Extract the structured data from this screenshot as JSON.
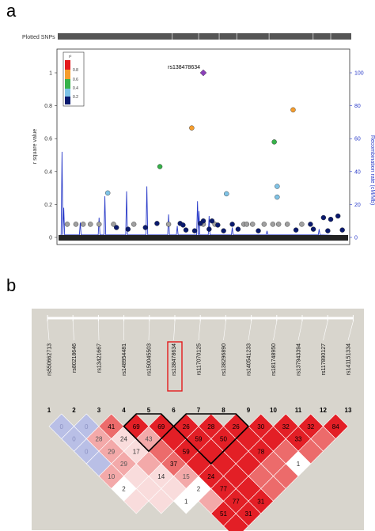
{
  "panel_labels": {
    "a": "a",
    "b": "b"
  },
  "colors": {
    "r2_high": "#e41a1c",
    "r2_08": "#f59d2d",
    "r2_06": "#37b24a",
    "r2_04": "#7fc3e6",
    "r2_02": "#0a1a6e",
    "lead": "#8a3fb8",
    "recomb": "#2b3cc9",
    "ld_bg": "#d8d5cd"
  },
  "chart_data": [
    {
      "type": "scatter",
      "strip_label": "Plotted SNPs",
      "ylabel": "r square value",
      "y2label": "Recombination rate (cM/Mb)",
      "ylim": [
        0,
        1.0
      ],
      "y2lim": [
        0,
        100
      ],
      "yticks": [
        "0",
        "0.2",
        "0.4",
        "0.6",
        "0.8",
        "1"
      ],
      "y2ticks": [
        "0",
        "20",
        "40",
        "60",
        "80",
        "100"
      ],
      "legend": {
        "title": "r²",
        "labels": [
          "0.8",
          "0.6",
          "0.4",
          "0.2"
        ],
        "position": "top-left"
      },
      "lead_snp": {
        "label": "rs138478634",
        "x": 0.5,
        "y": 1.0
      },
      "points": [
        {
          "x": 0.46,
          "y": 0.665,
          "cat": "r2_08"
        },
        {
          "x": 0.81,
          "y": 0.775,
          "cat": "r2_08"
        },
        {
          "x": 0.35,
          "y": 0.43,
          "cat": "r2_06"
        },
        {
          "x": 0.745,
          "y": 0.58,
          "cat": "r2_06"
        },
        {
          "x": 0.17,
          "y": 0.27,
          "cat": "r2_04"
        },
        {
          "x": 0.58,
          "y": 0.265,
          "cat": "r2_04"
        },
        {
          "x": 0.755,
          "y": 0.31,
          "cat": "r2_04"
        },
        {
          "x": 0.755,
          "y": 0.245,
          "cat": "r2_04"
        },
        {
          "x": 0.03,
          "y": 0.08,
          "cat": "grey"
        },
        {
          "x": 0.06,
          "y": 0.08,
          "cat": "grey"
        },
        {
          "x": 0.085,
          "y": 0.08,
          "cat": "grey"
        },
        {
          "x": 0.11,
          "y": 0.08,
          "cat": "grey"
        },
        {
          "x": 0.14,
          "y": 0.08,
          "cat": "grey"
        },
        {
          "x": 0.19,
          "y": 0.08,
          "cat": "grey"
        },
        {
          "x": 0.26,
          "y": 0.08,
          "cat": "grey"
        },
        {
          "x": 0.38,
          "y": 0.08,
          "cat": "grey"
        },
        {
          "x": 0.5,
          "y": 0.08,
          "cat": "grey"
        },
        {
          "x": 0.54,
          "y": 0.08,
          "cat": "grey"
        },
        {
          "x": 0.64,
          "y": 0.08,
          "cat": "grey"
        },
        {
          "x": 0.65,
          "y": 0.08,
          "cat": "grey"
        },
        {
          "x": 0.67,
          "y": 0.08,
          "cat": "grey"
        },
        {
          "x": 0.71,
          "y": 0.08,
          "cat": "grey"
        },
        {
          "x": 0.74,
          "y": 0.08,
          "cat": "grey"
        },
        {
          "x": 0.76,
          "y": 0.08,
          "cat": "grey"
        },
        {
          "x": 0.79,
          "y": 0.08,
          "cat": "grey"
        },
        {
          "x": 0.84,
          "y": 0.08,
          "cat": "grey"
        },
        {
          "x": 0.34,
          "y": 0.085,
          "cat": "r2_02"
        },
        {
          "x": 0.42,
          "y": 0.085,
          "cat": "r2_02"
        },
        {
          "x": 0.43,
          "y": 0.075,
          "cat": "r2_02"
        },
        {
          "x": 0.49,
          "y": 0.085,
          "cat": "r2_02"
        },
        {
          "x": 0.5,
          "y": 0.1,
          "cat": "r2_02"
        },
        {
          "x": 0.53,
          "y": 0.1,
          "cat": "r2_02"
        },
        {
          "x": 0.55,
          "y": 0.075,
          "cat": "r2_02"
        },
        {
          "x": 0.6,
          "y": 0.08,
          "cat": "r2_02"
        },
        {
          "x": 0.87,
          "y": 0.08,
          "cat": "r2_02"
        },
        {
          "x": 0.915,
          "y": 0.12,
          "cat": "r2_02"
        },
        {
          "x": 0.94,
          "y": 0.11,
          "cat": "r2_02"
        },
        {
          "x": 0.965,
          "y": 0.13,
          "cat": "r2_02"
        },
        {
          "x": 0.2,
          "y": 0.06,
          "cat": "r2_02"
        },
        {
          "x": 0.24,
          "y": 0.05,
          "cat": "r2_02"
        },
        {
          "x": 0.3,
          "y": 0.06,
          "cat": "r2_02"
        },
        {
          "x": 0.44,
          "y": 0.045,
          "cat": "r2_02"
        },
        {
          "x": 0.47,
          "y": 0.04,
          "cat": "r2_02"
        },
        {
          "x": 0.52,
          "y": 0.05,
          "cat": "r2_02"
        },
        {
          "x": 0.57,
          "y": 0.04,
          "cat": "r2_02"
        },
        {
          "x": 0.62,
          "y": 0.05,
          "cat": "r2_02"
        },
        {
          "x": 0.69,
          "y": 0.04,
          "cat": "r2_02"
        },
        {
          "x": 0.82,
          "y": 0.045,
          "cat": "r2_02"
        },
        {
          "x": 0.88,
          "y": 0.05,
          "cat": "r2_02"
        },
        {
          "x": 0.93,
          "y": 0.04,
          "cat": "r2_02"
        },
        {
          "x": 0.98,
          "y": 0.045,
          "cat": "r2_02"
        }
      ],
      "recomb_peaks": [
        {
          "x": 0.012,
          "y": 52
        },
        {
          "x": 0.018,
          "y": 18
        },
        {
          "x": 0.075,
          "y": 9
        },
        {
          "x": 0.14,
          "y": 12
        },
        {
          "x": 0.16,
          "y": 25
        },
        {
          "x": 0.235,
          "y": 28
        },
        {
          "x": 0.305,
          "y": 31
        },
        {
          "x": 0.38,
          "y": 14
        },
        {
          "x": 0.41,
          "y": 7
        },
        {
          "x": 0.48,
          "y": 22
        },
        {
          "x": 0.485,
          "y": 16
        },
        {
          "x": 0.52,
          "y": 13
        },
        {
          "x": 0.6,
          "y": 6
        },
        {
          "x": 0.72,
          "y": 4
        },
        {
          "x": 0.9,
          "y": 5
        }
      ]
    },
    {
      "type": "heatmap",
      "snps": [
        "rs550662713",
        "rs80218646",
        "rs13421667",
        "rs148954481",
        "rs150045503",
        "rs138478634",
        "rs117070125",
        "rs138296890",
        "rs140541233",
        "rs181748950",
        "rs137943394",
        "rs117890127",
        "rs141151334"
      ],
      "numbers": [
        "1",
        "2",
        "3",
        "4",
        "5",
        "6",
        "7",
        "8",
        "9",
        "10",
        "11",
        "12",
        "13"
      ],
      "highlight_index": 5,
      "cells": [
        {
          "i": 1,
          "j": 2,
          "v": "0",
          "c": "blue"
        },
        {
          "i": 2,
          "j": 3,
          "v": "0",
          "c": "blue"
        },
        {
          "i": 3,
          "j": 4,
          "v": "41",
          "c": "r3"
        },
        {
          "i": 4,
          "j": 5,
          "v": "69",
          "c": "r4"
        },
        {
          "i": 5,
          "j": 6,
          "v": "69",
          "c": "r4"
        },
        {
          "i": 6,
          "j": 7,
          "v": "26",
          "c": "r4"
        },
        {
          "i": 7,
          "j": 8,
          "v": "28",
          "c": "r4"
        },
        {
          "i": 8,
          "j": 9,
          "v": "26",
          "c": "r4"
        },
        {
          "i": 9,
          "j": 10,
          "v": "30",
          "c": "r4"
        },
        {
          "i": 10,
          "j": 11,
          "v": "32",
          "c": "r4"
        },
        {
          "i": 11,
          "j": 12,
          "v": "32",
          "c": "r4"
        },
        {
          "i": 12,
          "j": 13,
          "v": "84",
          "c": "r4"
        },
        {
          "i": 1,
          "j": 3,
          "v": "0",
          "c": "blue"
        },
        {
          "i": 2,
          "j": 4,
          "v": "28",
          "c": "r2"
        },
        {
          "i": 3,
          "j": 5,
          "v": "24",
          "c": "r1"
        },
        {
          "i": 4,
          "j": 6,
          "v": "43",
          "c": "r2"
        },
        {
          "i": 5,
          "j": 7,
          "v": "",
          "c": "r4"
        },
        {
          "i": 6,
          "j": 8,
          "v": "59",
          "c": "r4"
        },
        {
          "i": 7,
          "j": 9,
          "v": "50",
          "c": "r4"
        },
        {
          "i": 8,
          "j": 10,
          "v": "",
          "c": "r4"
        },
        {
          "i": 9,
          "j": 11,
          "v": "",
          "c": "r4"
        },
        {
          "i": 10,
          "j": 12,
          "v": "33",
          "c": "r4"
        },
        {
          "i": 11,
          "j": 13,
          "v": "",
          "c": "r3"
        },
        {
          "i": 1,
          "j": 4,
          "v": "0",
          "c": "blue"
        },
        {
          "i": 2,
          "j": 5,
          "v": "29",
          "c": "r2"
        },
        {
          "i": 3,
          "j": 6,
          "v": "17",
          "c": "r1"
        },
        {
          "i": 4,
          "j": 7,
          "v": "",
          "c": "r3"
        },
        {
          "i": 5,
          "j": 8,
          "v": "59",
          "c": "r4"
        },
        {
          "i": 6,
          "j": 9,
          "v": "",
          "c": "r4"
        },
        {
          "i": 7,
          "j": 10,
          "v": "",
          "c": "r4"
        },
        {
          "i": 8,
          "j": 11,
          "v": "78",
          "c": "r4"
        },
        {
          "i": 9,
          "j": 12,
          "v": "",
          "c": "r3"
        },
        {
          "i": 10,
          "j": 13,
          "v": "",
          "c": "r3"
        },
        {
          "i": 1,
          "j": 5,
          "v": "",
          "c": "blue"
        },
        {
          "i": 2,
          "j": 6,
          "v": "29",
          "c": "r2"
        },
        {
          "i": 3,
          "j": 7,
          "v": "",
          "c": "r2"
        },
        {
          "i": 4,
          "j": 8,
          "v": "37",
          "c": "r3"
        },
        {
          "i": 5,
          "j": 9,
          "v": "",
          "c": "r4"
        },
        {
          "i": 6,
          "j": 10,
          "v": "",
          "c": "r4"
        },
        {
          "i": 7,
          "j": 11,
          "v": "",
          "c": "r4"
        },
        {
          "i": 8,
          "j": 12,
          "v": "",
          "c": "r3"
        },
        {
          "i": 9,
          "j": 13,
          "v": "1",
          "c": "white"
        },
        {
          "i": 1,
          "j": 6,
          "v": "10",
          "c": "r2"
        },
        {
          "i": 2,
          "j": 7,
          "v": "",
          "c": "r1"
        },
        {
          "i": 3,
          "j": 8,
          "v": "14",
          "c": "r1"
        },
        {
          "i": 4,
          "j": 9,
          "v": "15",
          "c": "r2"
        },
        {
          "i": 5,
          "j": 10,
          "v": "24",
          "c": "r4"
        },
        {
          "i": 6,
          "j": 11,
          "v": "",
          "c": "r4"
        },
        {
          "i": 7,
          "j": 12,
          "v": "",
          "c": "r3"
        },
        {
          "i": 8,
          "j": 13,
          "v": "",
          "c": "r3"
        },
        {
          "i": 1,
          "j": 7,
          "v": "2",
          "c": "white"
        },
        {
          "i": 2,
          "j": 8,
          "v": "",
          "c": "r1"
        },
        {
          "i": 3,
          "j": 9,
          "v": "",
          "c": "r1"
        },
        {
          "i": 4,
          "j": 10,
          "v": "2",
          "c": "white"
        },
        {
          "i": 5,
          "j": 11,
          "v": "77",
          "c": "r4"
        },
        {
          "i": 6,
          "j": 12,
          "v": "",
          "c": "r4"
        },
        {
          "i": 7,
          "j": 13,
          "v": "",
          "c": "r3"
        },
        {
          "i": 1,
          "j": 8,
          "v": "",
          "c": "r1"
        },
        {
          "i": 2,
          "j": 9,
          "v": "",
          "c": "r1"
        },
        {
          "i": 3,
          "j": 10,
          "v": "1",
          "c": "white"
        },
        {
          "i": 4,
          "j": 11,
          "v": "",
          "c": "r2"
        },
        {
          "i": 5,
          "j": 12,
          "v": "77",
          "c": "r4"
        },
        {
          "i": 6,
          "j": 13,
          "v": "31",
          "c": "r4"
        },
        {
          "i": 4,
          "j": 12,
          "v": "51",
          "c": "r4"
        },
        {
          "i": 5,
          "j": 13,
          "v": "31",
          "c": "r4"
        },
        {
          "i": 4,
          "j": 13,
          "v": "",
          "c": "r4"
        }
      ],
      "blocks": [
        [
          4,
          6
        ],
        [
          6,
          9
        ]
      ]
    }
  ]
}
